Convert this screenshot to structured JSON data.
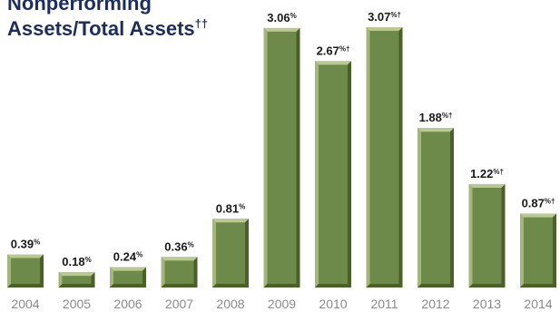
{
  "colors": {
    "bar_face": "#6e8a4a",
    "bar_light": "#a3b878",
    "bar_dark": "#4a5f2c",
    "bar_top": "#b9c98f",
    "value_text": "#1a1a1a",
    "axis_text": "#8a8a8a",
    "title": "#1d2d5c"
  },
  "chart_data": {
    "type": "bar",
    "title_lines": [
      "Nonperforming",
      "Assets/Total Assets"
    ],
    "title_marker": "††",
    "categories": [
      "2004",
      "2005",
      "2006",
      "2007",
      "2008",
      "2009",
      "2010",
      "2011",
      "2012",
      "2013",
      "2014"
    ],
    "values": [
      0.39,
      0.18,
      0.24,
      0.36,
      0.81,
      3.06,
      2.67,
      3.07,
      1.88,
      1.22,
      0.87
    ],
    "data_labels": [
      "0.39",
      "0.18",
      "0.24",
      "0.36",
      "0.81",
      "3.06",
      "2.67",
      "3.07",
      "1.88",
      "1.22",
      "0.87"
    ],
    "label_suffixes": [
      "%",
      "%",
      "%",
      "%",
      "%",
      "%",
      "%†",
      "%†",
      "%†",
      "%†",
      "%†"
    ],
    "ylim": [
      0,
      3.07
    ],
    "grid": false,
    "legend": "none"
  }
}
